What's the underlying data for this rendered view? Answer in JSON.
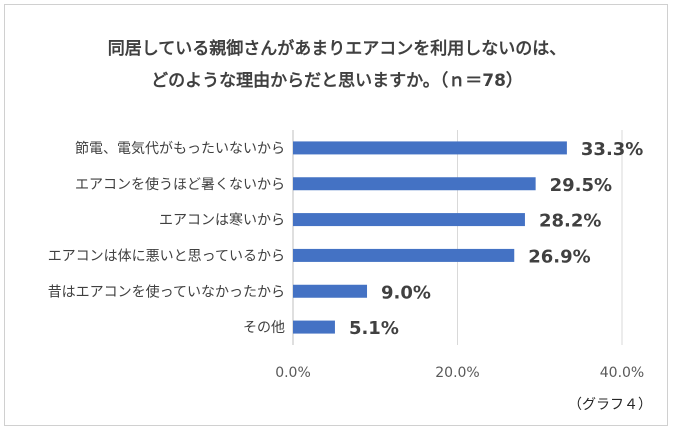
{
  "chart_data": {
    "type": "bar",
    "orientation": "horizontal",
    "title_lines": [
      "同居している親御さんがあまりエアコンを利用しないのは、",
      "どのような理由からだと思いますか。（ｎ＝78）"
    ],
    "categories": [
      "節電、電気代がもったいないから",
      "エアコンを使うほど暑くないから",
      "エアコンは寒いから",
      "エアコンは体に悪いと思っているから",
      "昔はエアコンを使っていなかったから",
      "その他"
    ],
    "values": [
      33.3,
      29.5,
      28.2,
      26.9,
      9.0,
      5.1
    ],
    "data_labels": [
      "33.3%",
      "29.5%",
      "28.2%",
      "26.9%",
      "9.0%",
      "5.1%"
    ],
    "xlim": [
      0,
      40
    ],
    "xticks": [
      0,
      20,
      40
    ],
    "xtick_labels": [
      "0.0%",
      "20.0%",
      "40.0%"
    ],
    "grid": "vertical",
    "bar_color": "#4472C4",
    "grid_color": "#d9d9d9",
    "caption": "（グラフ４）"
  }
}
